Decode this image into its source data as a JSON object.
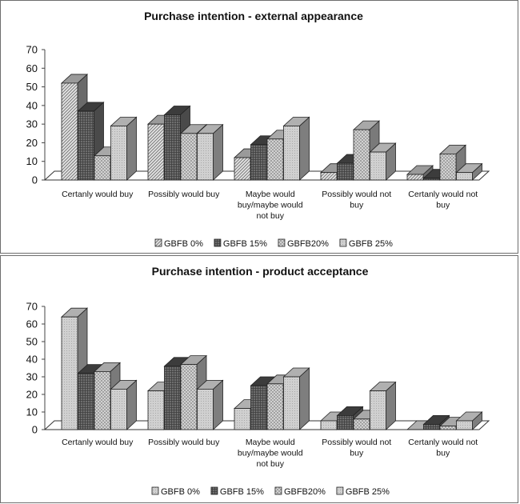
{
  "chart_data": [
    {
      "type": "bar",
      "title": "Purchase intention - external appearance",
      "categories": [
        [
          "Certanly would buy"
        ],
        [
          "Possibly would buy"
        ],
        [
          "Maybe would",
          "buy/maybe would",
          "not buy"
        ],
        [
          "Possibly would not",
          "buy"
        ],
        [
          "Certanly would not",
          "buy"
        ]
      ],
      "series": [
        {
          "name": "GBFB 0%",
          "values": [
            52,
            30,
            12,
            4,
            3
          ],
          "pattern": "diag"
        },
        {
          "name": "GBFB 15%",
          "values": [
            37,
            35,
            19,
            9,
            1
          ],
          "pattern": "grid"
        },
        {
          "name": "GBFB20%",
          "values": [
            13,
            25,
            22,
            27,
            14
          ],
          "pattern": "check"
        },
        {
          "name": "GBFB 25%",
          "values": [
            29,
            25,
            29,
            15,
            4
          ],
          "pattern": "light"
        }
      ],
      "ylim": [
        0,
        70
      ],
      "yticks": [
        "0",
        "10",
        "20",
        "30",
        "40",
        "50",
        "60",
        "70"
      ],
      "xlabel": "",
      "ylabel": "",
      "legend": "bottom",
      "grid": false
    },
    {
      "type": "bar",
      "title": "Purchase intention - product acceptance",
      "categories": [
        [
          "Certanly would buy"
        ],
        [
          "Possibly would buy"
        ],
        [
          "Maybe would",
          "buy/maybe would",
          "not buy"
        ],
        [
          "Possibly would not",
          "buy"
        ],
        [
          "Certanly would not",
          "buy"
        ]
      ],
      "series": [
        {
          "name": "GBFB 0%",
          "values": [
            64,
            22,
            12,
            5,
            0
          ],
          "pattern": "light"
        },
        {
          "name": "GBFB 15%",
          "values": [
            32,
            36,
            25,
            8,
            3
          ],
          "pattern": "grid"
        },
        {
          "name": "GBFB20%",
          "values": [
            33,
            37,
            26,
            6,
            2
          ],
          "pattern": "check"
        },
        {
          "name": "GBFB 25%",
          "values": [
            23,
            23,
            30,
            22,
            5
          ],
          "pattern": "light"
        }
      ],
      "ylim": [
        0,
        70
      ],
      "yticks": [
        "0",
        "10",
        "20",
        "30",
        "40",
        "50",
        "60",
        "70"
      ],
      "xlabel": "",
      "ylabel": "",
      "legend": "bottom",
      "grid": false
    }
  ]
}
